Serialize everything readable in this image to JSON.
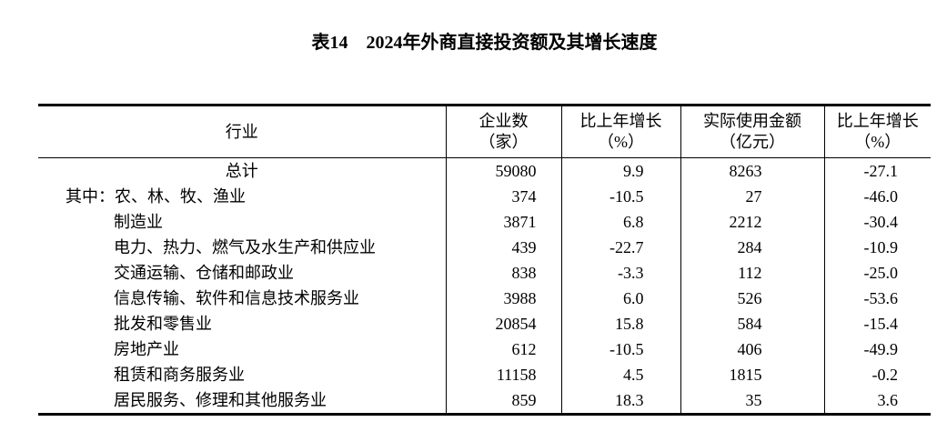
{
  "title": "表14　2024年外商直接投资额及其增长速度",
  "colors": {
    "text": "#000000",
    "background": "#ffffff",
    "border": "#000000"
  },
  "table": {
    "columns": [
      {
        "label": "行业",
        "sub": ""
      },
      {
        "label": "企业数",
        "sub": "（家）"
      },
      {
        "label": "比上年增长",
        "sub": "（%）"
      },
      {
        "label": "实际使用金额",
        "sub": "（亿元）"
      },
      {
        "label": "比上年增长",
        "sub": "（%）"
      }
    ],
    "rows": [
      {
        "label": "总计",
        "align": "center",
        "values": [
          "59080",
          "9.9",
          "8263",
          "-27.1"
        ]
      },
      {
        "label": "其中：农、林、牧、渔业",
        "align": "prefix",
        "values": [
          "374",
          "-10.5",
          "27",
          "-46.0"
        ]
      },
      {
        "label": "制造业",
        "align": "indent",
        "values": [
          "3871",
          "6.8",
          "2212",
          "-30.4"
        ]
      },
      {
        "label": "电力、热力、燃气及水生产和供应业",
        "align": "indent",
        "values": [
          "439",
          "-22.7",
          "284",
          "-10.9"
        ]
      },
      {
        "label": "交通运输、仓储和邮政业",
        "align": "indent",
        "values": [
          "838",
          "-3.3",
          "112",
          "-25.0"
        ]
      },
      {
        "label": "信息传输、软件和信息技术服务业",
        "align": "indent",
        "values": [
          "3988",
          "6.0",
          "526",
          "-53.6"
        ]
      },
      {
        "label": "批发和零售业",
        "align": "indent",
        "values": [
          "20854",
          "15.8",
          "584",
          "-15.4"
        ]
      },
      {
        "label": "房地产业",
        "align": "indent",
        "values": [
          "612",
          "-10.5",
          "406",
          "-49.9"
        ]
      },
      {
        "label": "租赁和商务服务业",
        "align": "indent",
        "values": [
          "11158",
          "4.5",
          "1815",
          "-0.2"
        ]
      },
      {
        "label": "居民服务、修理和其他服务业",
        "align": "indent",
        "values": [
          "859",
          "18.3",
          "35",
          "3.6"
        ]
      }
    ]
  }
}
